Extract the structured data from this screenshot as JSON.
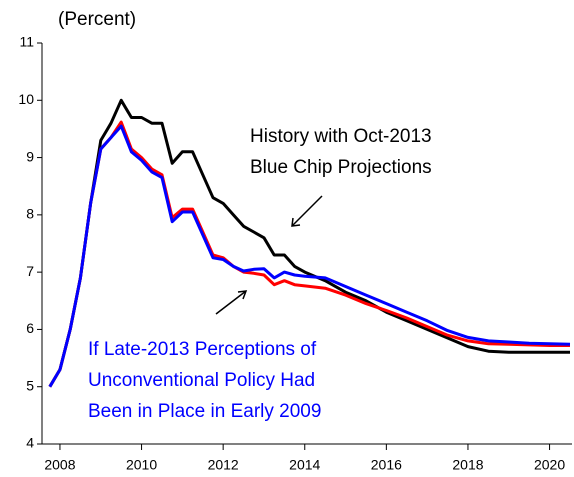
{
  "chart_data": {
    "type": "line",
    "ylabel": "(Percent)",
    "x": [
      2007.75,
      2008,
      2008.25,
      2008.5,
      2008.75,
      2009,
      2009.25,
      2009.5,
      2009.75,
      2010,
      2010.25,
      2010.5,
      2010.75,
      2011,
      2011.25,
      2011.5,
      2011.75,
      2012,
      2012.25,
      2012.5,
      2012.75,
      2013,
      2013.25,
      2013.5,
      2013.75,
      2014,
      2014.5,
      2015,
      2015.5,
      2016,
      2016.5,
      2017,
      2017.5,
      2018,
      2018.5,
      2019,
      2019.5,
      2020,
      2020.5
    ],
    "series": [
      {
        "color": "#000000",
        "values": [
          5.0,
          5.3,
          6.0,
          6.9,
          8.2,
          9.3,
          9.6,
          10.0,
          9.7,
          9.7,
          9.6,
          9.6,
          8.9,
          9.1,
          9.1,
          8.7,
          8.3,
          8.2,
          8.0,
          7.8,
          7.7,
          7.6,
          7.3,
          7.3,
          7.1,
          7.0,
          6.85,
          6.65,
          6.5,
          6.3,
          6.15,
          6.0,
          5.85,
          5.7,
          5.62,
          5.6,
          5.6,
          5.6,
          5.6
        ]
      },
      {
        "color": "#ff0000",
        "values": [
          5.0,
          5.3,
          6.0,
          6.9,
          8.2,
          9.15,
          9.35,
          9.62,
          9.15,
          9.0,
          8.8,
          8.7,
          7.95,
          8.1,
          8.1,
          7.7,
          7.3,
          7.25,
          7.1,
          7.0,
          6.98,
          6.95,
          6.78,
          6.85,
          6.78,
          6.76,
          6.72,
          6.6,
          6.45,
          6.33,
          6.2,
          6.05,
          5.9,
          5.8,
          5.75,
          5.74,
          5.73,
          5.72,
          5.72
        ]
      },
      {
        "color": "#0000ff",
        "values": [
          5.0,
          5.3,
          6.0,
          6.9,
          8.2,
          9.15,
          9.35,
          9.55,
          9.1,
          8.95,
          8.75,
          8.65,
          7.88,
          8.05,
          8.05,
          7.65,
          7.25,
          7.22,
          7.1,
          7.02,
          7.05,
          7.06,
          6.9,
          7.0,
          6.95,
          6.93,
          6.9,
          6.75,
          6.6,
          6.45,
          6.3,
          6.15,
          5.98,
          5.86,
          5.8,
          5.78,
          5.76,
          5.75,
          5.74
        ]
      }
    ],
    "annotations": [
      {
        "lines": [
          "History with Oct-2013",
          "Blue Chip Projections"
        ],
        "color": "#000000"
      },
      {
        "lines": [
          "If Late-2013 Perceptions of",
          "Unconventional Policy Had",
          "Been in Place in Early 2009"
        ],
        "color": "#0000ff"
      }
    ],
    "xlim": [
      2007.56,
      2020.55
    ],
    "ylim": [
      4,
      11
    ],
    "xticks": [
      2008,
      2010,
      2012,
      2014,
      2016,
      2018,
      2020
    ],
    "yticks": [
      4,
      5,
      6,
      7,
      8,
      9,
      10,
      11
    ]
  }
}
